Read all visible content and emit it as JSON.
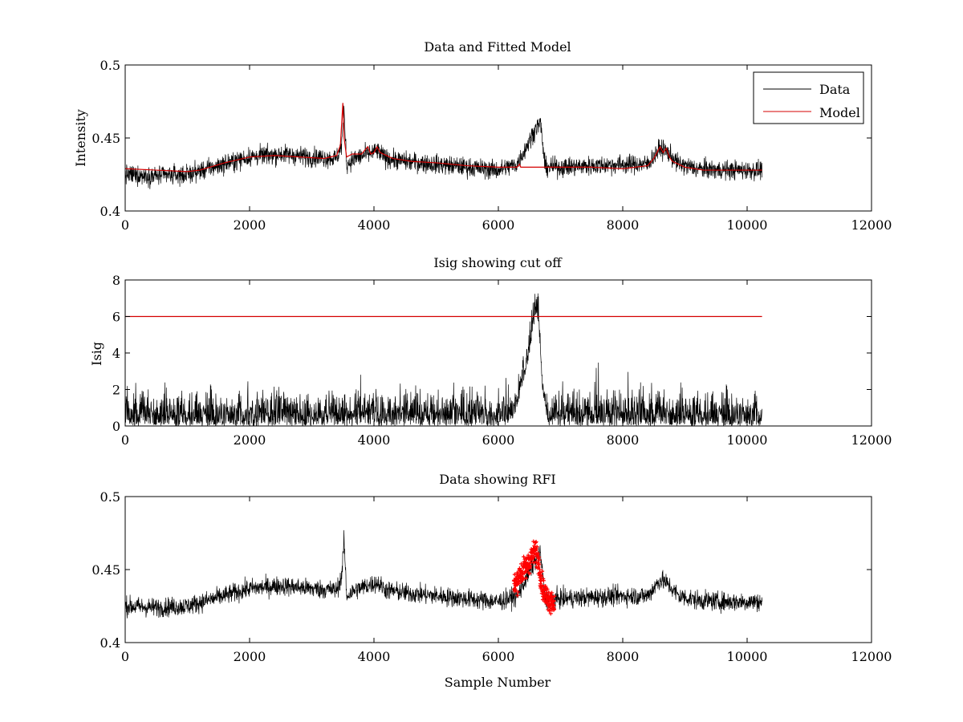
{
  "chart_data": [
    {
      "type": "line",
      "title": "Data and Fitted Model",
      "xlabel": "",
      "ylabel": "Intensity",
      "xlim": [
        0,
        12000
      ],
      "ylim": [
        0.4,
        0.5
      ],
      "xticks": [
        0,
        2000,
        4000,
        6000,
        8000,
        10000,
        12000
      ],
      "yticks": [
        0.4,
        0.45,
        0.5
      ],
      "xtick_labels": [
        "0",
        "2000",
        "4000",
        "6000",
        "8000",
        "10000",
        "12000"
      ],
      "ytick_labels": [
        "0.4",
        "0.45",
        "0.5"
      ],
      "legend": {
        "placement": "top-right",
        "entries": [
          "Data",
          "Model"
        ]
      },
      "grid": false,
      "series": [
        {
          "name": "Data",
          "color": "#000000",
          "kind": "noisy",
          "noise": 0.006,
          "x": [
            0,
            500,
            1000,
            1500,
            2000,
            2500,
            3000,
            3400,
            3480,
            3520,
            3560,
            3700,
            3900,
            4050,
            4200,
            4500,
            5000,
            5500,
            6000,
            6300,
            6500,
            6600,
            6680,
            6750,
            7000,
            7500,
            8000,
            8400,
            8600,
            8700,
            8900,
            9200,
            9600,
            10000,
            10240
          ],
          "y": [
            0.425,
            0.424,
            0.425,
            0.431,
            0.437,
            0.439,
            0.437,
            0.436,
            0.445,
            0.47,
            0.432,
            0.436,
            0.439,
            0.441,
            0.436,
            0.434,
            0.432,
            0.43,
            0.428,
            0.432,
            0.448,
            0.457,
            0.46,
            0.43,
            0.43,
            0.431,
            0.432,
            0.432,
            0.443,
            0.441,
            0.432,
            0.429,
            0.428,
            0.428,
            0.428
          ]
        },
        {
          "name": "Model",
          "color": "#d40000",
          "kind": "smooth",
          "x": [
            0,
            500,
            1000,
            1200,
            1600,
            2000,
            2400,
            2800,
            3200,
            3400,
            3460,
            3500,
            3520,
            3560,
            3650,
            3800,
            3900,
            3950,
            4000,
            4050,
            4100,
            4300,
            4600,
            5000,
            5500,
            6000,
            6300,
            6340,
            6360,
            6400,
            6500,
            6700,
            7000,
            7500,
            8000,
            8400,
            8500,
            8600,
            8650,
            8700,
            8750,
            8800,
            9000,
            9300,
            9600,
            10000,
            10240
          ],
          "y": [
            0.429,
            0.428,
            0.427,
            0.428,
            0.433,
            0.437,
            0.438,
            0.437,
            0.436,
            0.438,
            0.445,
            0.474,
            0.45,
            0.437,
            0.439,
            0.439,
            0.444,
            0.439,
            0.44,
            0.444,
            0.44,
            0.436,
            0.434,
            0.433,
            0.431,
            0.43,
            0.43,
            0.432,
            0.43,
            0.43,
            0.43,
            0.43,
            0.43,
            0.43,
            0.429,
            0.431,
            0.436,
            0.444,
            0.44,
            0.443,
            0.437,
            0.434,
            0.43,
            0.428,
            0.428,
            0.428,
            0.428
          ]
        }
      ]
    },
    {
      "type": "line",
      "title": "Isig showing cut off",
      "xlabel": "",
      "ylabel": "Isig",
      "xlim": [
        0,
        12000
      ],
      "ylim": [
        0,
        8
      ],
      "xticks": [
        0,
        2000,
        4000,
        6000,
        8000,
        10000,
        12000
      ],
      "yticks": [
        0,
        2,
        4,
        6,
        8
      ],
      "xtick_labels": [
        "0",
        "2000",
        "4000",
        "6000",
        "8000",
        "10000",
        "12000"
      ],
      "ytick_labels": [
        "0",
        "2",
        "4",
        "6",
        "8"
      ],
      "grid": false,
      "series": [
        {
          "color": "#000000",
          "kind": "abs-noise",
          "noise": 0.9,
          "x": [
            0,
            1000,
            2000,
            3000,
            4000,
            5000,
            6000,
            6200,
            6300,
            6450,
            6550,
            6600,
            6650,
            6700,
            6800,
            8000,
            9000,
            10240
          ],
          "y": [
            0,
            0,
            0,
            0,
            0,
            0,
            0,
            0,
            1.0,
            3.0,
            5.0,
            6.0,
            5.5,
            2.0,
            0,
            0,
            0,
            0
          ]
        },
        {
          "color": "#d40000",
          "kind": "line",
          "x": [
            0,
            10240
          ],
          "y": [
            6,
            6
          ]
        }
      ]
    },
    {
      "type": "line",
      "title": "Data showing RFI",
      "xlabel": "Sample Number",
      "ylabel": "",
      "xlim": [
        0,
        12000
      ],
      "ylim": [
        0.4,
        0.5
      ],
      "xticks": [
        0,
        2000,
        4000,
        6000,
        8000,
        10000,
        12000
      ],
      "yticks": [
        0.4,
        0.45,
        0.5
      ],
      "xtick_labels": [
        "0",
        "2000",
        "4000",
        "6000",
        "8000",
        "10000",
        "12000"
      ],
      "ytick_labels": [
        "0.4",
        "0.45",
        "0.5"
      ],
      "grid": false,
      "series": [
        {
          "color": "#000000",
          "kind": "noisy",
          "noise": 0.006,
          "x": [
            0,
            500,
            1000,
            1500,
            2000,
            2500,
            3000,
            3400,
            3480,
            3520,
            3560,
            3700,
            3900,
            4050,
            4200,
            4500,
            5000,
            5500,
            6000,
            6300,
            6500,
            6600,
            6680,
            6750,
            7000,
            7500,
            8000,
            8400,
            8600,
            8700,
            8900,
            9200,
            9600,
            10000,
            10240
          ],
          "y": [
            0.425,
            0.424,
            0.425,
            0.431,
            0.437,
            0.439,
            0.437,
            0.436,
            0.445,
            0.47,
            0.432,
            0.436,
            0.439,
            0.441,
            0.436,
            0.434,
            0.432,
            0.43,
            0.428,
            0.432,
            0.448,
            0.457,
            0.46,
            0.43,
            0.43,
            0.431,
            0.432,
            0.432,
            0.443,
            0.441,
            0.432,
            0.429,
            0.428,
            0.428,
            0.428
          ]
        },
        {
          "color": "#ff0000",
          "kind": "markers",
          "noise": 0.004,
          "x": [
            6250,
            6350,
            6450,
            6550,
            6600,
            6650,
            6700,
            6750,
            6800,
            6900
          ],
          "y": [
            0.438,
            0.447,
            0.452,
            0.46,
            0.463,
            0.455,
            0.44,
            0.433,
            0.43,
            0.428
          ]
        }
      ]
    }
  ]
}
